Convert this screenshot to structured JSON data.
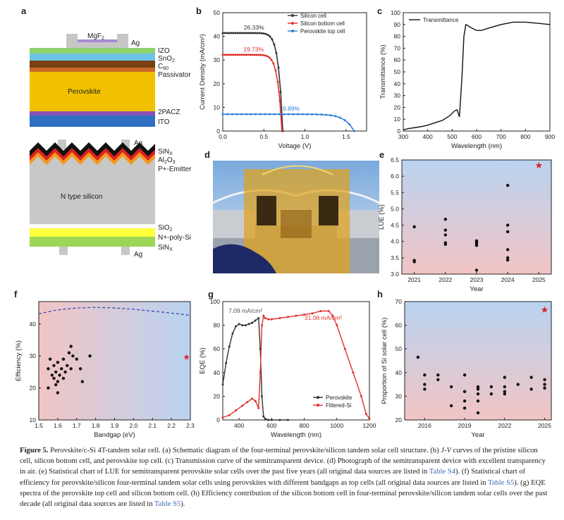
{
  "panels": {
    "a": {
      "label": "a",
      "top_layers": [
        "MgF2",
        "Ag",
        "IZO",
        "SnO2",
        "C60",
        "Passivator",
        "Perovskite",
        "2PACZ",
        "ITO"
      ],
      "bottom_layers": [
        "Ag",
        "SiNX",
        "Al2O3",
        "P+-Emitter",
        "N type silicon",
        "SiO2",
        "N+-poly-Si",
        "SiNX",
        "Ag"
      ],
      "colors": {
        "mgf2": "#a78bd6",
        "ag": "#c7c7c7",
        "izo": "#8fd16a",
        "sno2": "#6bc3e8",
        "c60": "#7a3f12",
        "passivator": "#c96a2a",
        "perovskite": "#f2c200",
        "pacz": "#8a4fb5",
        "ito": "#2e6fc2",
        "silicon": "#c8c8c8",
        "yellow": "#ffff3c",
        "green": "#9bd657"
      }
    },
    "b": {
      "label": "b"
    },
    "c": {
      "label": "c"
    },
    "d": {
      "label": "d"
    },
    "e": {
      "label": "e"
    },
    "f": {
      "label": "f"
    },
    "g": {
      "label": "g"
    },
    "h": {
      "label": "h"
    }
  },
  "chart_data": [
    {
      "id": "b",
      "type": "line",
      "xlabel": "Voltage (V)",
      "ylabel": "Current Density (mA/cm²)",
      "xlim": [
        0,
        1.75
      ],
      "ylim": [
        0,
        50
      ],
      "xticks": [
        "0.0",
        "0.5",
        "1.0",
        "1.5"
      ],
      "yticks": [
        "0",
        "10",
        "20",
        "30",
        "40",
        "50"
      ],
      "series": [
        {
          "name": "Silicon cell",
          "color": "#333333",
          "jsc": 41.4,
          "voc": 0.73,
          "annotation": "26.33%"
        },
        {
          "name": "Silicon bottom cell",
          "color": "#e0302a",
          "jsc": 32.2,
          "voc": 0.72,
          "annotation": "19.73%"
        },
        {
          "name": "Perovskite top cell",
          "color": "#2f7fd9",
          "jsc": 7.1,
          "voc": 1.6,
          "annotation": "9.89%"
        }
      ]
    },
    {
      "id": "c",
      "type": "line",
      "xlabel": "Wavelength (nm)",
      "ylabel": "Transmittance (%)",
      "xlim": [
        300,
        900
      ],
      "ylim": [
        0,
        100
      ],
      "xticks": [
        "300",
        "400",
        "500",
        "600",
        "700",
        "800",
        "900"
      ],
      "yticks": [
        "0",
        "10",
        "20",
        "30",
        "40",
        "50",
        "60",
        "70",
        "80",
        "90",
        "100"
      ],
      "series": [
        {
          "name": "Transmittance",
          "color": "#111111",
          "x": [
            300,
            320,
            350,
            380,
            400,
            430,
            460,
            490,
            510,
            520,
            530,
            540,
            548,
            556,
            565,
            580,
            600,
            620,
            650,
            700,
            750,
            800,
            850,
            900
          ],
          "y": [
            1,
            2,
            3,
            4,
            5,
            7,
            9,
            13,
            17,
            18,
            12,
            45,
            80,
            90,
            89,
            87,
            85,
            85,
            87,
            90,
            92,
            92,
            91,
            90
          ]
        }
      ]
    },
    {
      "id": "e",
      "type": "scatter",
      "xlabel": "Year",
      "ylabel": "LUE (%)",
      "ylim": [
        3.0,
        6.5
      ],
      "xticks": [
        "2021",
        "2022",
        "2023",
        "2024",
        "2025"
      ],
      "yticks": [
        "3.0",
        "3.5",
        "4.0",
        "4.5",
        "5.0",
        "5.5",
        "6.0",
        "6.5"
      ],
      "points": [
        {
          "x": 2021,
          "y": 4.45
        },
        {
          "x": 2021,
          "y": 3.42
        },
        {
          "x": 2021,
          "y": 3.38
        },
        {
          "x": 2022,
          "y": 4.68
        },
        {
          "x": 2022,
          "y": 4.35
        },
        {
          "x": 2022,
          "y": 4.2
        },
        {
          "x": 2022,
          "y": 3.96
        },
        {
          "x": 2022,
          "y": 3.91
        },
        {
          "x": 2023,
          "y": 4.02
        },
        {
          "x": 2023,
          "y": 3.98
        },
        {
          "x": 2023,
          "y": 3.94
        },
        {
          "x": 2023,
          "y": 3.88
        },
        {
          "x": 2023,
          "y": 3.12
        },
        {
          "x": 2024,
          "y": 5.72
        },
        {
          "x": 2024,
          "y": 4.5
        },
        {
          "x": 2024,
          "y": 4.3
        },
        {
          "x": 2024,
          "y": 3.75
        },
        {
          "x": 2024,
          "y": 3.5
        },
        {
          "x": 2024,
          "y": 3.43
        }
      ],
      "star": {
        "x": 2025,
        "y": 6.33
      }
    },
    {
      "id": "f",
      "type": "scatter",
      "xlabel": "Bandgap (eV)",
      "ylabel": "Efficiency (%)",
      "xlim": [
        1.5,
        2.3
      ],
      "ylim": [
        10,
        47
      ],
      "xticks": [
        "1.5",
        "1.6",
        "1.7",
        "1.8",
        "1.9",
        "2.0",
        "2.1",
        "2.2",
        "2.3"
      ],
      "yticks": [
        "10",
        "20",
        "30",
        "40"
      ],
      "points": [
        {
          "x": 1.55,
          "y": 20
        },
        {
          "x": 1.55,
          "y": 26
        },
        {
          "x": 1.56,
          "y": 29
        },
        {
          "x": 1.57,
          "y": 24
        },
        {
          "x": 1.58,
          "y": 23
        },
        {
          "x": 1.58,
          "y": 27
        },
        {
          "x": 1.59,
          "y": 21
        },
        {
          "x": 1.59,
          "y": 25
        },
        {
          "x": 1.6,
          "y": 22
        },
        {
          "x": 1.6,
          "y": 28
        },
        {
          "x": 1.6,
          "y": 18.5
        },
        {
          "x": 1.61,
          "y": 24
        },
        {
          "x": 1.62,
          "y": 26
        },
        {
          "x": 1.63,
          "y": 29
        },
        {
          "x": 1.63,
          "y": 23
        },
        {
          "x": 1.64,
          "y": 25
        },
        {
          "x": 1.65,
          "y": 27
        },
        {
          "x": 1.66,
          "y": 31
        },
        {
          "x": 1.67,
          "y": 33
        },
        {
          "x": 1.67,
          "y": 26
        },
        {
          "x": 1.68,
          "y": 30
        },
        {
          "x": 1.7,
          "y": 29
        },
        {
          "x": 1.72,
          "y": 26
        },
        {
          "x": 1.73,
          "y": 22
        },
        {
          "x": 1.77,
          "y": 30
        }
      ],
      "star": {
        "x": 2.28,
        "y": 29.6
      },
      "limit_curve": {
        "x": [
          1.5,
          1.6,
          1.7,
          1.8,
          1.9,
          2.0,
          2.1,
          2.2,
          2.3
        ],
        "y": [
          43.2,
          44.4,
          45.0,
          45.2,
          45.0,
          44.6,
          44.0,
          43.4,
          42.7
        ]
      }
    },
    {
      "id": "g",
      "type": "line",
      "xlabel": "Wavelength (nm)",
      "ylabel": "EQE (%)",
      "xlim": [
        300,
        1200
      ],
      "ylim": [
        0,
        100
      ],
      "xticks": [
        "400",
        "600",
        "800",
        "1000",
        "1200"
      ],
      "yticks": [
        "0",
        "20",
        "40",
        "60",
        "80",
        "100"
      ],
      "annotations": [
        {
          "text": "7.09 mA/cm²",
          "color": "#555555"
        },
        {
          "text": "31.06 mA/cm²",
          "color": "#e0302a"
        }
      ],
      "series": [
        {
          "name": "Perovskite",
          "color": "#333333",
          "x": [
            300,
            320,
            340,
            360,
            380,
            400,
            420,
            440,
            460,
            480,
            500,
            520,
            530,
            540,
            550,
            560,
            580,
            600,
            650,
            700
          ],
          "y": [
            30,
            48,
            62,
            73,
            79,
            81,
            80,
            80,
            81,
            82,
            84,
            86,
            60,
            20,
            3,
            1,
            0,
            0,
            0,
            0
          ]
        },
        {
          "name": "Filtered-Si",
          "color": "#e0302a",
          "x": [
            300,
            340,
            380,
            420,
            450,
            480,
            500,
            520,
            530,
            540,
            550,
            560,
            580,
            600,
            650,
            700,
            750,
            800,
            850,
            900,
            950,
            975,
            1000,
            1050,
            1100,
            1150,
            1180,
            1200
          ],
          "y": [
            2,
            4,
            8,
            12,
            15,
            18,
            16,
            10,
            40,
            80,
            88,
            86,
            85,
            85,
            86,
            87,
            88,
            89,
            90,
            92,
            92,
            88,
            80,
            60,
            40,
            20,
            5,
            1
          ]
        }
      ]
    },
    {
      "id": "h",
      "type": "scatter",
      "xlabel": "Year",
      "ylabel": "Proportion of Si solar cell (%)",
      "xlim": [
        2014.5,
        2025.5
      ],
      "ylim": [
        20,
        70
      ],
      "xticks": [
        "2016",
        "2019",
        "2022",
        "2025"
      ],
      "yticks": [
        "20",
        "30",
        "40",
        "50",
        "60",
        "70"
      ],
      "points": [
        {
          "x": 2015.5,
          "y": 46.5
        },
        {
          "x": 2016,
          "y": 39
        },
        {
          "x": 2016,
          "y": 35
        },
        {
          "x": 2016,
          "y": 33
        },
        {
          "x": 2017,
          "y": 39
        },
        {
          "x": 2017,
          "y": 37
        },
        {
          "x": 2018,
          "y": 34
        },
        {
          "x": 2018,
          "y": 26
        },
        {
          "x": 2019,
          "y": 39
        },
        {
          "x": 2019,
          "y": 32
        },
        {
          "x": 2019,
          "y": 28
        },
        {
          "x": 2019,
          "y": 25
        },
        {
          "x": 2020,
          "y": 34
        },
        {
          "x": 2020,
          "y": 33
        },
        {
          "x": 2020,
          "y": 31
        },
        {
          "x": 2020,
          "y": 28
        },
        {
          "x": 2020,
          "y": 23
        },
        {
          "x": 2021,
          "y": 34
        },
        {
          "x": 2021,
          "y": 31
        },
        {
          "x": 2022,
          "y": 38
        },
        {
          "x": 2022,
          "y": 34
        },
        {
          "x": 2022,
          "y": 32
        },
        {
          "x": 2022,
          "y": 31
        },
        {
          "x": 2023,
          "y": 35
        },
        {
          "x": 2024,
          "y": 38
        },
        {
          "x": 2024,
          "y": 33
        },
        {
          "x": 2025,
          "y": 37
        },
        {
          "x": 2025,
          "y": 35
        },
        {
          "x": 2025,
          "y": 33.5
        }
      ],
      "star": {
        "x": 2025,
        "y": 66.5
      }
    }
  ],
  "caption": {
    "figure_label": "Figure 5.",
    "part1": " Perovskite/c-Si 4T-tandem solar cell. (a) Schematic diagram of the four-terminal perovskite/silicon tandem solar cell structure. (b) ",
    "jv": "J-V",
    "part2": " curves of the pristine silicon cell, silicon bottom cell, and perovskite top cell. (c) Transmission curve of the semitransparent device. (d) Photograph of the semitransparent device with excellent transparency in air. (e) Statistical chart of LUE for semitransparent perovskite solar cells over the past five years (all original data sources are listed in ",
    "ref_s4": "Table S4",
    "part3": "). (f) Statistical chart of efficiency for perovskite/silicon four-terminal tandem solar cells using perovskites with different bandgaps as top cells (all original data sources are listed in ",
    "ref_s5a": "Table S5",
    "part4": "). (g) EQE spectra of the perovskite top cell and silicon bottom cell. (h) Efficiency contribution of the silicon bottom cell in four-terminal perovskite/silicon tandem solar cells over the past decade (all original data sources are listed in ",
    "ref_s5b": "Table S5",
    "part5": ")."
  }
}
